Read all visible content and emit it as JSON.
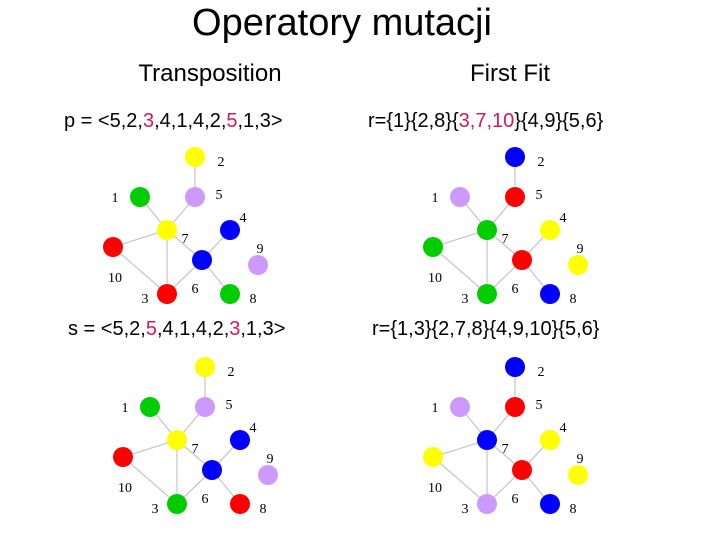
{
  "title": "Operatory mutacji",
  "columns": [
    "Transposition",
    "First Fit"
  ],
  "formulas": [
    {
      "parts": [
        {
          "t": "p = <5,2,"
        },
        {
          "t": "3",
          "hl": true
        },
        {
          "t": ",4,1,4,2,"
        },
        {
          "t": "5",
          "hl": true
        },
        {
          "t": ",1,3>"
        }
      ]
    },
    {
      "parts": [
        {
          "t": "r={1}{2,8}{"
        },
        {
          "t": "3,7,10",
          "hl": true
        },
        {
          "t": "}{4,9}{5,6}"
        }
      ]
    },
    {
      "parts": [
        {
          "t": "s = <5,2,"
        },
        {
          "t": "5",
          "hl": true
        },
        {
          "t": ",4,1,4,2,"
        },
        {
          "t": "3",
          "hl": true
        },
        {
          "t": ",1,3>"
        }
      ]
    },
    {
      "parts": [
        {
          "t": "r={1,3}{2,7,8}{4,9,10}{5,6}"
        }
      ]
    }
  ],
  "colors": {
    "yellow": "#ffff00",
    "green": "#00cc00",
    "red": "#ff0000",
    "blue": "#0000ff",
    "lavender": "#cc99ff",
    "edge": "#c8c8c8",
    "highlight": "#d6185a"
  },
  "graph": {
    "nodes": [
      "1",
      "2",
      "3",
      "4",
      "5",
      "6",
      "7",
      "8",
      "9",
      "10"
    ],
    "edges": [
      [
        "1",
        "7"
      ],
      [
        "7",
        "5"
      ],
      [
        "5",
        "2"
      ],
      [
        "7",
        "10"
      ],
      [
        "7",
        "6"
      ],
      [
        "7",
        "3"
      ],
      [
        "6",
        "8"
      ],
      [
        "10",
        "3"
      ],
      [
        "3",
        "6"
      ],
      [
        "6",
        "4"
      ]
    ]
  },
  "graphs": [
    {
      "name": "graph-p-transposition",
      "colors": {
        "1": "green",
        "2": "yellow",
        "3": "red",
        "4": "blue",
        "5": "lavender",
        "6": "blue",
        "7": "yellow",
        "8": "green",
        "9": "lavender",
        "10": "red"
      }
    },
    {
      "name": "graph-r-first-fit-top",
      "colors": {
        "1": "lavender",
        "2": "blue",
        "3": "green",
        "4": "yellow",
        "5": "red",
        "6": "red",
        "7": "green",
        "8": "blue",
        "9": "yellow",
        "10": "green"
      }
    },
    {
      "name": "graph-s-transposition",
      "colors": {
        "1": "green",
        "2": "yellow",
        "3": "green",
        "4": "blue",
        "5": "lavender",
        "6": "blue",
        "7": "yellow",
        "8": "red",
        "9": "lavender",
        "10": "red"
      }
    },
    {
      "name": "graph-r-first-fit-bottom",
      "colors": {
        "1": "lavender",
        "2": "blue",
        "3": "lavender",
        "4": "yellow",
        "5": "red",
        "6": "red",
        "7": "blue",
        "8": "blue",
        "9": "yellow",
        "10": "yellow"
      }
    }
  ]
}
